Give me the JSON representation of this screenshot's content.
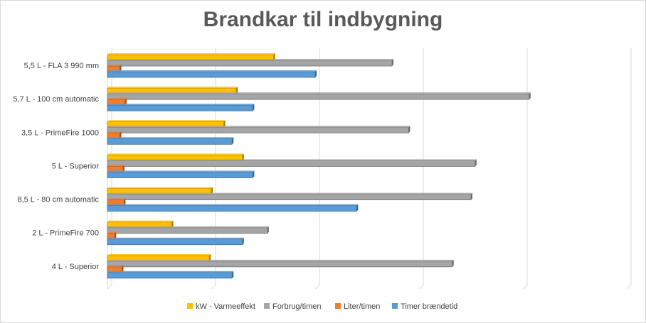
{
  "chart_data": {
    "type": "bar",
    "orientation": "horizontal",
    "title": "Brandkar til indbygning",
    "categories": [
      "5,5 L - FLA 3 990 mm",
      "5,7 L - 100 cm automatic",
      "3,5 L - PrimeFire 1000",
      "5 L - Superior",
      "8,5 L - 80 cm automatic",
      "2 L - PrimeFire 700",
      "4 L - Superior"
    ],
    "series": [
      {
        "name": "kW - Varmeeffekt",
        "color": "#ffc000",
        "values": [
          8,
          6.2,
          5.6,
          6.5,
          5,
          3.1,
          4.9
        ]
      },
      {
        "name": "Forbrug/timen",
        "color": "#a5a5a5",
        "values": [
          13.7,
          20.3,
          14.5,
          17.7,
          17.5,
          7.7,
          16.6
        ]
      },
      {
        "name": "Liter/timen",
        "color": "#ed7d31",
        "values": [
          0.6,
          0.85,
          0.6,
          0.75,
          0.8,
          0.35,
          0.7
        ]
      },
      {
        "name": "Timer brændetid",
        "color": "#5b9bd5",
        "values": [
          10,
          7,
          6,
          7,
          12,
          6.5,
          6
        ]
      }
    ],
    "xlim": [
      0,
      25
    ],
    "grid": true,
    "legend_position": "bottom"
  }
}
